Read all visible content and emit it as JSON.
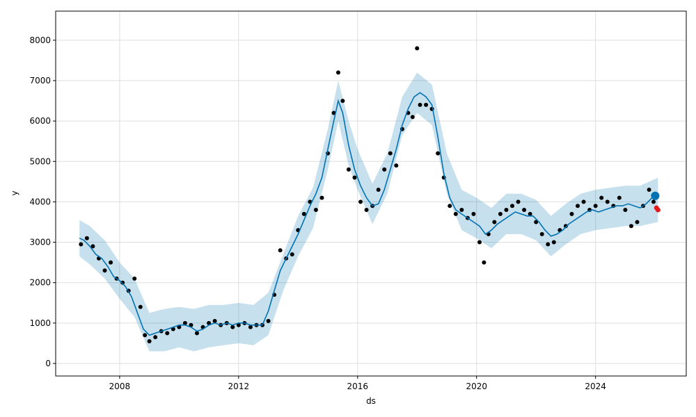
{
  "chart_data": {
    "type": "line",
    "xlabel": "ds",
    "ylabel": "y",
    "xlim": [
      2005.85,
      2027.05
    ],
    "ylim": [
      -310,
      8720
    ],
    "grid": true,
    "x_ticks": [
      2008,
      2012,
      2016,
      2020,
      2024
    ],
    "x_tick_labels": [
      "2008",
      "2012",
      "2016",
      "2020",
      "2024"
    ],
    "y_ticks": [
      0,
      1000,
      2000,
      3000,
      4000,
      5000,
      6000,
      7000,
      8000
    ],
    "y_tick_labels": [
      "0",
      "1000",
      "2000",
      "3000",
      "4000",
      "5000",
      "6000",
      "7000",
      "8000"
    ],
    "colors": {
      "observed": "#000000",
      "forecast": "#0072B2",
      "uncertainty": "#0072B2",
      "highlight": "#e31a1c",
      "grid": "#dddddd"
    },
    "series": [
      {
        "role": "observed",
        "style": "scatter",
        "x": [
          2006.7,
          2006.9,
          2007.1,
          2007.3,
          2007.5,
          2007.7,
          2007.9,
          2008.1,
          2008.3,
          2008.5,
          2008.7,
          2008.85,
          2009.0,
          2009.2,
          2009.4,
          2009.6,
          2009.8,
          2010.0,
          2010.2,
          2010.4,
          2010.6,
          2010.8,
          2011.0,
          2011.2,
          2011.4,
          2011.6,
          2011.8,
          2012.0,
          2012.2,
          2012.4,
          2012.6,
          2012.8,
          2013.0,
          2013.2,
          2013.4,
          2013.6,
          2013.8,
          2014.0,
          2014.2,
          2014.4,
          2014.6,
          2014.8,
          2015.0,
          2015.2,
          2015.35,
          2015.5,
          2015.7,
          2015.9,
          2016.1,
          2016.3,
          2016.5,
          2016.7,
          2016.9,
          2017.1,
          2017.3,
          2017.5,
          2017.7,
          2017.85,
          2018.0,
          2018.1,
          2018.3,
          2018.5,
          2018.7,
          2018.9,
          2019.1,
          2019.3,
          2019.5,
          2019.7,
          2019.9,
          2020.1,
          2020.25,
          2020.4,
          2020.6,
          2020.8,
          2021.0,
          2021.2,
          2021.4,
          2021.6,
          2021.8,
          2022.0,
          2022.2,
          2022.4,
          2022.6,
          2022.8,
          2023.0,
          2023.2,
          2023.4,
          2023.6,
          2023.8,
          2024.0,
          2024.2,
          2024.4,
          2024.6,
          2024.8,
          2025.0,
          2025.2,
          2025.4,
          2025.6,
          2025.8,
          2025.95
        ],
        "y": [
          2950,
          3100,
          2900,
          2600,
          2300,
          2500,
          2100,
          2000,
          1800,
          2100,
          1400,
          700,
          550,
          650,
          800,
          750,
          850,
          900,
          1000,
          950,
          750,
          900,
          1000,
          1050,
          950,
          1000,
          900,
          950,
          1000,
          900,
          950,
          950,
          1050,
          1700,
          2800,
          2600,
          2700,
          3300,
          3700,
          4000,
          3800,
          4100,
          5200,
          6200,
          7200,
          6500,
          4800,
          4600,
          4000,
          3800,
          3900,
          4300,
          4800,
          5200,
          4900,
          5800,
          6200,
          6100,
          7800,
          6400,
          6400,
          6300,
          5200,
          4600,
          3900,
          3700,
          3800,
          3600,
          3700,
          3000,
          2500,
          3200,
          3500,
          3700,
          3800,
          3900,
          4000,
          3800,
          3700,
          3500,
          3200,
          2950,
          3000,
          3300,
          3400,
          3700,
          3900,
          4000,
          3800,
          3900,
          4100,
          4000,
          3900,
          4100,
          3800,
          3400,
          3500,
          3900,
          4300,
          4000
        ]
      },
      {
        "role": "forecast",
        "style": "line",
        "x": [
          2006.65,
          2006.8,
          2007.0,
          2007.2,
          2007.4,
          2007.6,
          2007.8,
          2008.0,
          2008.2,
          2008.4,
          2008.6,
          2008.8,
          2009.0,
          2009.2,
          2009.4,
          2009.6,
          2009.8,
          2010.0,
          2010.2,
          2010.4,
          2010.6,
          2010.8,
          2011.0,
          2011.2,
          2011.4,
          2011.6,
          2011.8,
          2012.0,
          2012.2,
          2012.4,
          2012.6,
          2012.8,
          2013.0,
          2013.2,
          2013.4,
          2013.6,
          2013.8,
          2014.0,
          2014.2,
          2014.4,
          2014.6,
          2014.8,
          2015.0,
          2015.2,
          2015.35,
          2015.5,
          2015.7,
          2015.9,
          2016.1,
          2016.3,
          2016.5,
          2016.7,
          2016.9,
          2017.1,
          2017.3,
          2017.5,
          2017.7,
          2017.9,
          2018.1,
          2018.3,
          2018.5,
          2018.7,
          2018.9,
          2019.1,
          2019.3,
          2019.5,
          2019.7,
          2019.9,
          2020.1,
          2020.3,
          2020.5,
          2020.7,
          2020.9,
          2021.1,
          2021.3,
          2021.5,
          2021.7,
          2021.9,
          2022.1,
          2022.3,
          2022.5,
          2022.7,
          2022.9,
          2023.1,
          2023.3,
          2023.5,
          2023.7,
          2023.9,
          2024.1,
          2024.3,
          2024.5,
          2024.7,
          2024.9,
          2025.1,
          2025.3,
          2025.5,
          2025.7,
          2025.9,
          2026.1
        ],
        "y": [
          3100,
          3050,
          2900,
          2700,
          2600,
          2400,
          2150,
          2050,
          1900,
          1650,
          1250,
          850,
          700,
          750,
          800,
          850,
          900,
          950,
          950,
          900,
          800,
          850,
          950,
          1000,
          950,
          1000,
          950,
          1000,
          1000,
          950,
          950,
          950,
          1300,
          1800,
          2300,
          2600,
          2900,
          3200,
          3550,
          3900,
          4200,
          4600,
          5300,
          6000,
          6500,
          6200,
          5400,
          4800,
          4400,
          4100,
          3900,
          3950,
          4300,
          4800,
          5300,
          5900,
          6300,
          6600,
          6700,
          6600,
          6400,
          5600,
          4700,
          4100,
          3800,
          3700,
          3600,
          3500,
          3400,
          3200,
          3300,
          3450,
          3550,
          3650,
          3750,
          3700,
          3650,
          3650,
          3500,
          3300,
          3150,
          3200,
          3300,
          3450,
          3550,
          3650,
          3750,
          3800,
          3750,
          3800,
          3850,
          3900,
          3900,
          3950,
          3900,
          3850,
          3950,
          4100,
          4150
        ]
      },
      {
        "role": "uncertainty",
        "style": "band",
        "x": [
          2006.65,
          2007.0,
          2007.5,
          2008.0,
          2008.5,
          2009.0,
          2009.5,
          2010.0,
          2010.5,
          2011.0,
          2011.5,
          2012.0,
          2012.5,
          2013.0,
          2013.5,
          2014.0,
          2014.5,
          2015.0,
          2015.35,
          2015.7,
          2016.0,
          2016.5,
          2017.0,
          2017.5,
          2018.0,
          2018.5,
          2019.0,
          2019.5,
          2020.0,
          2020.5,
          2021.0,
          2021.5,
          2022.0,
          2022.5,
          2023.0,
          2023.5,
          2024.0,
          2024.5,
          2025.0,
          2025.5,
          2026.1
        ],
        "upper": [
          3550,
          3400,
          3050,
          2500,
          2100,
          1250,
          1350,
          1400,
          1350,
          1450,
          1450,
          1500,
          1450,
          1750,
          2700,
          3650,
          4350,
          5800,
          7000,
          6000,
          5300,
          4450,
          5200,
          6600,
          7200,
          6900,
          5200,
          4300,
          4100,
          3850,
          4200,
          4200,
          4050,
          3650,
          3950,
          4200,
          4300,
          4350,
          4400,
          4400,
          4600
        ],
        "lower": [
          2650,
          2450,
          2100,
          1600,
          1150,
          300,
          300,
          400,
          300,
          400,
          450,
          500,
          450,
          700,
          1800,
          2650,
          3350,
          4800,
          6000,
          4900,
          4300,
          3450,
          4200,
          5650,
          6200,
          5900,
          4200,
          3300,
          3100,
          2850,
          3200,
          3200,
          3050,
          2650,
          2950,
          3200,
          3300,
          3350,
          3400,
          3400,
          3500
        ]
      },
      {
        "role": "highlight",
        "style": "points",
        "x": [
          2026.05,
          2026.1
        ],
        "y": [
          3850,
          3800
        ]
      }
    ]
  }
}
